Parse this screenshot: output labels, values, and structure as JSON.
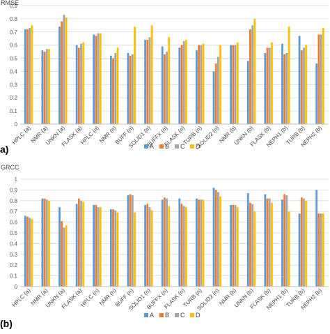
{
  "chart_data": [
    {
      "type": "bar",
      "panel_label": "a)",
      "ylabel": "RMSE",
      "ylim": [
        0,
        0.9
      ],
      "yticks": [
        "0",
        "0.1",
        "0.2",
        "0.3",
        "0.4",
        "0.5",
        "0.6",
        "0.7",
        "0.8",
        "0.9"
      ],
      "grid": true,
      "legend_position": "bottom",
      "categories": [
        "HPLC (a)",
        "NMR (a)",
        "UNKN (a)",
        "FLASK (a)",
        "HPLC (n)",
        "NMR (n)",
        "BUFF (n)",
        "SOLID1 (n)",
        "BUFFX (n)",
        "FLASK (n)",
        "TURB (n)",
        "SOLID2 (n)",
        "NMR (b)",
        "UNKN (b)",
        "FLASK (b)",
        "NEPH1 (b)",
        "TURB (b)",
        "NEPH2 (b)"
      ],
      "series": [
        {
          "name": "A",
          "color": "#5b9bd5",
          "values": [
            0.72,
            0.56,
            0.74,
            0.6,
            0.68,
            0.52,
            0.54,
            0.64,
            0.59,
            0.58,
            0.56,
            0.4,
            0.6,
            0.48,
            0.54,
            0.61,
            0.67,
            0.46
          ]
        },
        {
          "name": "B",
          "color": "#ed7d31",
          "values": [
            0.72,
            0.55,
            0.78,
            0.58,
            0.67,
            0.5,
            0.52,
            0.64,
            0.53,
            0.6,
            0.6,
            0.46,
            0.6,
            0.72,
            0.58,
            0.53,
            0.56,
            0.68
          ]
        },
        {
          "name": "C",
          "color": "#a5a5a5",
          "values": [
            0.73,
            0.57,
            0.83,
            0.61,
            0.69,
            0.54,
            0.53,
            0.66,
            0.55,
            0.63,
            0.6,
            0.51,
            0.6,
            0.75,
            0.58,
            0.54,
            0.58,
            0.68
          ]
        },
        {
          "name": "D",
          "color": "#ffc000",
          "values": [
            0.75,
            0.57,
            0.81,
            0.62,
            0.69,
            0.58,
            0.74,
            0.75,
            0.66,
            0.64,
            0.61,
            0.6,
            0.62,
            0.8,
            0.62,
            0.74,
            0.6,
            0.73
          ]
        }
      ]
    },
    {
      "type": "bar",
      "panel_label": "(b)",
      "ylabel": "GRCC",
      "ylim": [
        0,
        1
      ],
      "yticks": [
        "0",
        "0.1",
        "0.2",
        "0.3",
        "0.4",
        "0.5",
        "0.6",
        "0.7",
        "0.8",
        "0.9",
        "1"
      ],
      "grid": true,
      "legend_position": "bottom",
      "categories": [
        "HPLC (a)",
        "NMR (a)",
        "UNKN (a)",
        "FLASK (a)",
        "HPLC (n)",
        "NMR (n)",
        "BUFF (n)",
        "SOLID1 (n)",
        "BUFFX (n)",
        "FLASK (n)",
        "TURB (n)",
        "SOLID2 (n)",
        "NMR (b)",
        "UNKN (b)",
        "FLASK (b)",
        "NEPH1 (b)",
        "TURB (b)",
        "NEPH2 (b)"
      ],
      "series": [
        {
          "name": "A",
          "color": "#5b9bd5",
          "values": [
            0.66,
            0.82,
            0.74,
            0.77,
            0.76,
            0.72,
            0.85,
            0.76,
            0.81,
            0.82,
            0.82,
            0.92,
            0.76,
            0.87,
            0.86,
            0.81,
            0.68,
            0.9
          ]
        },
        {
          "name": "B",
          "color": "#ed7d31",
          "values": [
            0.65,
            0.82,
            0.61,
            0.82,
            0.76,
            0.72,
            0.86,
            0.77,
            0.83,
            0.77,
            0.81,
            0.9,
            0.76,
            0.78,
            0.82,
            0.86,
            0.83,
            0.68
          ]
        },
        {
          "name": "C",
          "color": "#a5a5a5",
          "values": [
            0.64,
            0.81,
            0.55,
            0.8,
            0.74,
            0.71,
            0.85,
            0.74,
            0.82,
            0.75,
            0.81,
            0.88,
            0.76,
            0.77,
            0.82,
            0.85,
            0.82,
            0.68
          ]
        },
        {
          "name": "D",
          "color": "#ffc000",
          "values": [
            0.63,
            0.8,
            0.57,
            0.79,
            0.74,
            0.69,
            0.69,
            0.71,
            0.75,
            0.74,
            0.81,
            0.84,
            0.74,
            0.7,
            0.78,
            0.7,
            0.8,
            0.68
          ]
        }
      ]
    }
  ]
}
